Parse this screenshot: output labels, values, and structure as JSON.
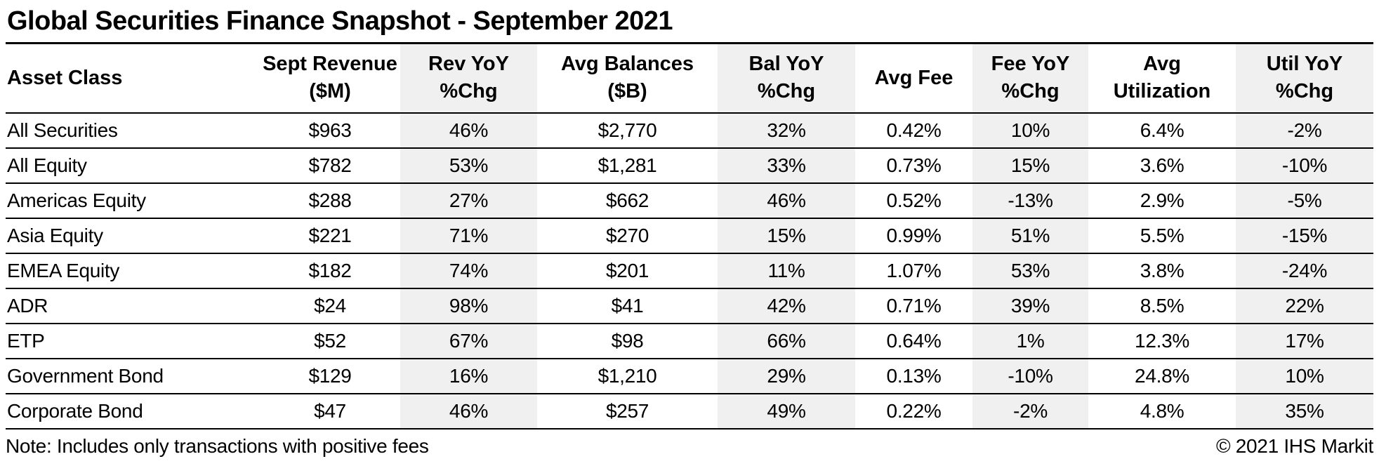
{
  "title": "Global Securities Finance Snapshot - September 2021",
  "chart_data": {
    "type": "table",
    "title": "Global Securities Finance Snapshot - September 2021",
    "columns": [
      {
        "id": "asset-class",
        "header": [
          "Asset Class"
        ],
        "align": "left",
        "shaded": false
      },
      {
        "id": "sept-revenue",
        "header": [
          "Sept Revenue",
          "($M)"
        ],
        "align": "center",
        "shaded": false
      },
      {
        "id": "rev-yoy",
        "header": [
          "Rev YoY",
          "%Chg"
        ],
        "align": "center",
        "shaded": true
      },
      {
        "id": "avg-balances",
        "header": [
          "Avg Balances",
          "($B)"
        ],
        "align": "center",
        "shaded": false
      },
      {
        "id": "bal-yoy",
        "header": [
          "Bal YoY",
          "%Chg"
        ],
        "align": "center",
        "shaded": true
      },
      {
        "id": "avg-fee",
        "header": [
          "Avg Fee"
        ],
        "align": "center",
        "shaded": false
      },
      {
        "id": "fee-yoy",
        "header": [
          "Fee YoY",
          "%Chg"
        ],
        "align": "center",
        "shaded": true
      },
      {
        "id": "avg-utilization",
        "header": [
          "Avg",
          "Utilization"
        ],
        "align": "center",
        "shaded": false
      },
      {
        "id": "util-yoy",
        "header": [
          "Util YoY",
          "%Chg"
        ],
        "align": "center",
        "shaded": true
      }
    ],
    "rows": [
      [
        "All Securities",
        "$963",
        "46%",
        "$2,770",
        "32%",
        "0.42%",
        "10%",
        "6.4%",
        "-2%"
      ],
      [
        "All Equity",
        "$782",
        "53%",
        "$1,281",
        "33%",
        "0.73%",
        "15%",
        "3.6%",
        "-10%"
      ],
      [
        "Americas Equity",
        "$288",
        "27%",
        "$662",
        "46%",
        "0.52%",
        "-13%",
        "2.9%",
        "-5%"
      ],
      [
        "Asia Equity",
        "$221",
        "71%",
        "$270",
        "15%",
        "0.99%",
        "51%",
        "5.5%",
        "-15%"
      ],
      [
        "EMEA Equity",
        "$182",
        "74%",
        "$201",
        "11%",
        "1.07%",
        "53%",
        "3.8%",
        "-24%"
      ],
      [
        "ADR",
        "$24",
        "98%",
        "$41",
        "42%",
        "0.71%",
        "39%",
        "8.5%",
        "22%"
      ],
      [
        "ETP",
        "$52",
        "67%",
        "$98",
        "66%",
        "0.64%",
        "1%",
        "12.3%",
        "17%"
      ],
      [
        "Government Bond",
        "$129",
        "16%",
        "$1,210",
        "29%",
        "0.13%",
        "-10%",
        "24.8%",
        "10%"
      ],
      [
        "Corporate Bond",
        "$47",
        "46%",
        "$257",
        "49%",
        "0.22%",
        "-2%",
        "4.8%",
        "35%"
      ]
    ]
  },
  "footer": {
    "note": "Note: Includes only transactions with positive fees",
    "copyright": "© 2021 IHS Markit"
  },
  "colors": {
    "shaded_column": "#f0f0f0",
    "border": "#000000",
    "background": "#ffffff",
    "text": "#000000"
  }
}
